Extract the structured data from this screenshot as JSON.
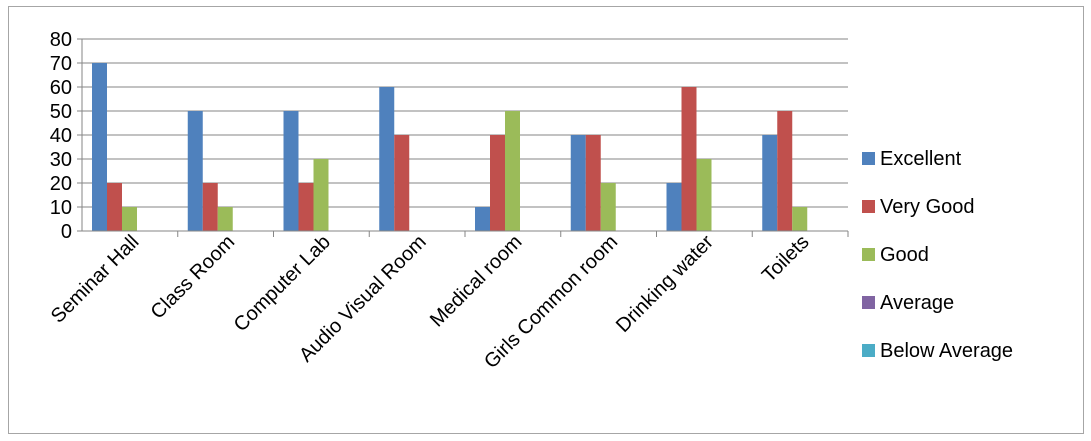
{
  "chart_data": {
    "type": "bar",
    "title": "",
    "xlabel": "",
    "ylabel": "",
    "ylim": [
      0,
      80
    ],
    "yticks": [
      0,
      10,
      20,
      30,
      40,
      50,
      60,
      70,
      80
    ],
    "grid": true,
    "legend_position": "right",
    "categories": [
      "Seminar Hall",
      "Class Room",
      "Computer Lab",
      "Audio Visual Room",
      "Medical room",
      "Girls Common room",
      "Drinking water",
      "Toilets"
    ],
    "series": [
      {
        "name": "Excellent",
        "color": "#4f81bd",
        "values": [
          70,
          50,
          50,
          60,
          10,
          40,
          20,
          40
        ]
      },
      {
        "name": "Very Good",
        "color": "#c0504d",
        "values": [
          20,
          20,
          20,
          40,
          40,
          40,
          60,
          50
        ]
      },
      {
        "name": "Good",
        "color": "#9bbb59",
        "values": [
          10,
          10,
          30,
          0,
          50,
          20,
          30,
          10
        ]
      },
      {
        "name": "Average",
        "color": "#8064a2",
        "values": [
          0,
          0,
          0,
          0,
          0,
          0,
          0,
          0
        ]
      },
      {
        "name": "Below Average",
        "color": "#4bacc6",
        "values": [
          0,
          0,
          0,
          0,
          0,
          0,
          0,
          0
        ]
      }
    ]
  }
}
